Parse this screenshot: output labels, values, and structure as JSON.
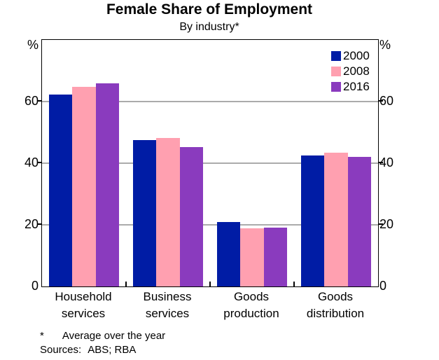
{
  "title": "Female Share of Employment",
  "subtitle": "By industry*",
  "axis": {
    "unit": "%"
  },
  "footnote": {
    "marker": "*",
    "text": "Average over the year"
  },
  "sources": {
    "label": "Sources:",
    "text": "ABS; RBA"
  },
  "colors": {
    "series_2000": "#001CA5",
    "series_2008": "#FFA0B0",
    "series_2016": "#8A3BBE",
    "gridline": "#ABABAB",
    "axis_frame": "#000000",
    "background": "#FFFFFF"
  },
  "chart_data": {
    "type": "bar",
    "title": "Female Share of Employment",
    "subtitle": "By industry*",
    "categories": [
      "Household services",
      "Business services",
      "Goods production",
      "Goods distribution"
    ],
    "category_labels": [
      [
        "Household",
        "services"
      ],
      [
        "Business",
        "services"
      ],
      [
        "Goods",
        "production"
      ],
      [
        "Goods",
        "distribution"
      ]
    ],
    "series": [
      {
        "name": "2000",
        "color": "#001CA5",
        "values": [
          62.3,
          47.4,
          20.8,
          42.5
        ]
      },
      {
        "name": "2008",
        "color": "#FFA0B0",
        "values": [
          64.7,
          48.2,
          18.8,
          43.3
        ]
      },
      {
        "name": "2016",
        "color": "#8A3BBE",
        "values": [
          65.8,
          45.3,
          19.0,
          42.1
        ]
      }
    ],
    "ylabel": "%",
    "ylim": [
      0,
      80
    ],
    "yticks": [
      0,
      20,
      40,
      60
    ],
    "grid": true,
    "legend_position": "top-right",
    "footnote": "* Average over the year",
    "sources": "Sources: ABS; RBA"
  }
}
